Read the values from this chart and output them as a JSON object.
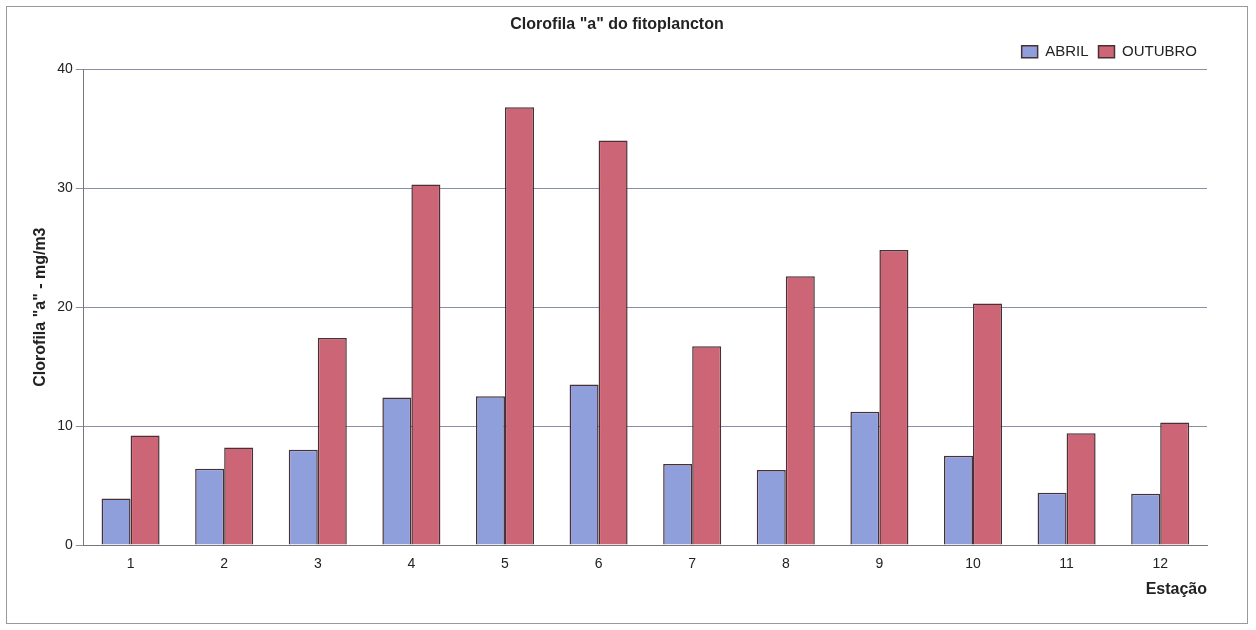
{
  "chart_data": {
    "type": "bar",
    "title": "Clorofila \"a\" do fitoplancton",
    "xlabel": "Estação",
    "ylabel": "Clorofila \"a\" - mg/m3",
    "categories": [
      "1",
      "2",
      "3",
      "4",
      "5",
      "6",
      "7",
      "8",
      "9",
      "10",
      "11",
      "12"
    ],
    "series": [
      {
        "name": "ABRIL",
        "color": "#8f9fdc",
        "values": [
          3.9,
          6.4,
          8.0,
          12.4,
          12.5,
          13.5,
          6.8,
          6.3,
          11.2,
          7.5,
          4.4,
          4.3
        ]
      },
      {
        "name": "OUTUBRO",
        "color": "#cc6677",
        "values": [
          9.2,
          8.2,
          17.4,
          30.3,
          36.8,
          34.0,
          16.7,
          22.6,
          24.8,
          20.3,
          9.4,
          10.3
        ]
      }
    ],
    "ylim": [
      0,
      40
    ],
    "yticks": [
      0,
      10,
      20,
      30,
      40
    ],
    "grid": "y",
    "legend": "top right"
  }
}
